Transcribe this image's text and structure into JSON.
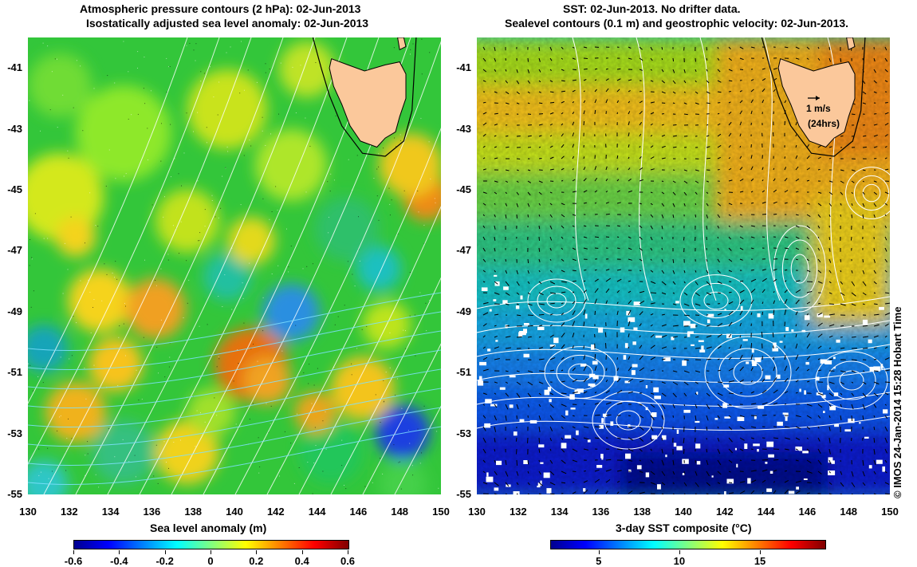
{
  "left_panel": {
    "title_line1": "Atmospheric pressure contours (2 hPa): 02-Jun-2013",
    "title_line2": "Isostatically adjusted sea level anomaly: 02-Jun-2013",
    "colorbar_label": "Sea level anomaly (m)",
    "colorbar_ticks": [
      "-0.6",
      "-0.4",
      "-0.2",
      "0",
      "0.2",
      "0.4",
      "0.6"
    ],
    "colormap": "jet",
    "range": [
      -0.6,
      0.6
    ]
  },
  "right_panel": {
    "title_line1": "SST: 02-Jun-2013. No drifter data.",
    "title_line2": "Sealevel contours (0.1 m) and geostrophic velocity: 02-Jun-2013.",
    "colorbar_label": "3-day SST composite (°C)",
    "colorbar_ticks": [
      "5",
      "10",
      "15"
    ],
    "colormap": "jet",
    "range": [
      2,
      19
    ],
    "scale_arrow_label": "1 m/s",
    "scale_arrow_sublabel": "(24hrs)"
  },
  "axes": {
    "x_ticks": [
      "130",
      "132",
      "134",
      "136",
      "138",
      "140",
      "142",
      "144",
      "146",
      "148",
      "150"
    ],
    "y_ticks": [
      "-41",
      "-43",
      "-45",
      "-47",
      "-49",
      "-51",
      "-53",
      "-55"
    ],
    "lon_range": [
      130,
      150
    ],
    "lat_range": [
      -55,
      -40
    ]
  },
  "credit": "© IMOS 24-Jan-2014 15:28 Hobart Time",
  "colors": {
    "land": "#fbc89b",
    "contour": "#ffffff",
    "pressure_contour": "#7fe0ff",
    "background": "#ffffff"
  }
}
